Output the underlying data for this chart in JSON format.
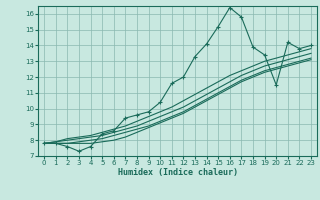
{
  "title": "",
  "xlabel": "Humidex (Indice chaleur)",
  "ylabel": "",
  "x_data": [
    0,
    1,
    2,
    3,
    4,
    5,
    6,
    7,
    8,
    9,
    10,
    11,
    12,
    13,
    14,
    15,
    16,
    17,
    18,
    19,
    20,
    21,
    22,
    23
  ],
  "main_y": [
    7.8,
    7.8,
    7.6,
    7.3,
    7.6,
    8.4,
    8.6,
    9.4,
    9.6,
    9.8,
    10.4,
    11.6,
    12.0,
    13.3,
    14.1,
    15.2,
    16.4,
    15.8,
    13.9,
    13.4,
    11.5,
    14.2,
    13.8,
    14.0
  ],
  "line1_y": [
    7.8,
    7.8,
    7.8,
    7.8,
    7.8,
    7.9,
    8.0,
    8.2,
    8.5,
    8.8,
    9.1,
    9.4,
    9.7,
    10.1,
    10.5,
    10.9,
    11.3,
    11.7,
    12.0,
    12.3,
    12.5,
    12.7,
    12.9,
    13.1
  ],
  "line2_y": [
    7.8,
    7.8,
    7.8,
    7.9,
    8.0,
    8.1,
    8.3,
    8.5,
    8.7,
    8.9,
    9.2,
    9.5,
    9.8,
    10.2,
    10.6,
    11.0,
    11.4,
    11.8,
    12.1,
    12.4,
    12.6,
    12.8,
    13.0,
    13.2
  ],
  "line3_y": [
    7.8,
    7.9,
    8.0,
    8.1,
    8.2,
    8.3,
    8.5,
    8.7,
    8.9,
    9.2,
    9.5,
    9.8,
    10.1,
    10.5,
    10.9,
    11.3,
    11.7,
    12.1,
    12.4,
    12.7,
    12.9,
    13.1,
    13.3,
    13.5
  ],
  "line4_y": [
    7.8,
    7.9,
    8.1,
    8.2,
    8.3,
    8.5,
    8.7,
    8.9,
    9.2,
    9.5,
    9.8,
    10.1,
    10.5,
    10.9,
    11.3,
    11.7,
    12.1,
    12.4,
    12.7,
    13.0,
    13.2,
    13.4,
    13.6,
    13.8
  ],
  "main_color": "#1a6b5a",
  "line_color": "#1a6b5a",
  "bg_color": "#c8e8e0",
  "grid_color": "#8ab8b0",
  "ylim": [
    7,
    16.5
  ],
  "xlim": [
    -0.5,
    23.5
  ],
  "yticks": [
    7,
    8,
    9,
    10,
    11,
    12,
    13,
    14,
    15,
    16
  ],
  "xticks": [
    0,
    1,
    2,
    3,
    4,
    5,
    6,
    7,
    8,
    9,
    10,
    11,
    12,
    13,
    14,
    15,
    16,
    17,
    18,
    19,
    20,
    21,
    22,
    23
  ],
  "marker": "+",
  "marker_size": 3,
  "linewidth": 0.8,
  "tick_fontsize": 5,
  "xlabel_fontsize": 6
}
